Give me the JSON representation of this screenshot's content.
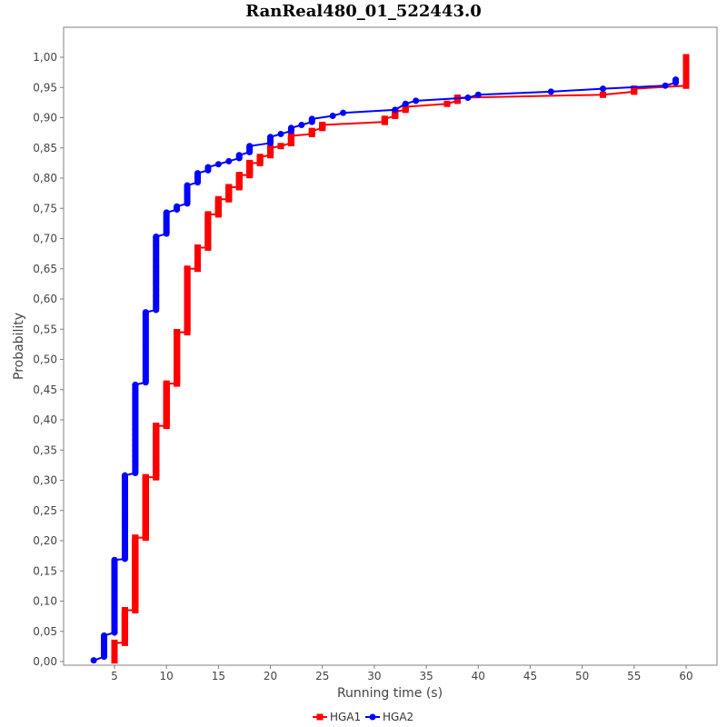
{
  "chart_data": {
    "type": "line",
    "title": "RanReal480_01_522443.0",
    "xlabel": "Running time (s)",
    "ylabel": "Probability",
    "xlim": [
      0,
      62.5
    ],
    "ylim": [
      0,
      1.0
    ],
    "x_ticks": [
      5,
      10,
      15,
      20,
      25,
      30,
      35,
      40,
      45,
      50,
      55,
      60
    ],
    "y_ticks": [
      "0,00",
      "0,05",
      "0,10",
      "0,15",
      "0,20",
      "0,25",
      "0,30",
      "0,35",
      "0,40",
      "0,45",
      "0,50",
      "0,55",
      "0,60",
      "0,65",
      "0,70",
      "0,75",
      "0,80",
      "0,85",
      "0,90",
      "0,95",
      "1,00"
    ],
    "grid": false,
    "legend_position": "bottom",
    "series": [
      {
        "name": "HGA1",
        "color": "#ff0000",
        "marker": "square",
        "points": [
          [
            5,
            0.002
          ],
          [
            5,
            0.031
          ],
          [
            6,
            0.031
          ],
          [
            6,
            0.085
          ],
          [
            7,
            0.085
          ],
          [
            7,
            0.205
          ],
          [
            8,
            0.205
          ],
          [
            8,
            0.305
          ],
          [
            9,
            0.305
          ],
          [
            9,
            0.39
          ],
          [
            10,
            0.39
          ],
          [
            10,
            0.46
          ],
          [
            11,
            0.46
          ],
          [
            11,
            0.545
          ],
          [
            12,
            0.545
          ],
          [
            12,
            0.65
          ],
          [
            13,
            0.65
          ],
          [
            13,
            0.685
          ],
          [
            14,
            0.685
          ],
          [
            14,
            0.74
          ],
          [
            15,
            0.74
          ],
          [
            15,
            0.765
          ],
          [
            16,
            0.765
          ],
          [
            16,
            0.785
          ],
          [
            17,
            0.785
          ],
          [
            17,
            0.805
          ],
          [
            18,
            0.805
          ],
          [
            18,
            0.825
          ],
          [
            19,
            0.825
          ],
          [
            19,
            0.835
          ],
          [
            20,
            0.838
          ],
          [
            20,
            0.85
          ],
          [
            21,
            0.853
          ],
          [
            22,
            0.858
          ],
          [
            22,
            0.87
          ],
          [
            24,
            0.873
          ],
          [
            24,
            0.878
          ],
          [
            25,
            0.883
          ],
          [
            25,
            0.888
          ],
          [
            31,
            0.893
          ],
          [
            31,
            0.898
          ],
          [
            32,
            0.903
          ],
          [
            32,
            0.91
          ],
          [
            33,
            0.913
          ],
          [
            33,
            0.918
          ],
          [
            37,
            0.923
          ],
          [
            38,
            0.928
          ],
          [
            38,
            0.933
          ],
          [
            52,
            0.938
          ],
          [
            55,
            0.943
          ],
          [
            55,
            0.948
          ],
          [
            60,
            0.953
          ],
          [
            60,
            1.0
          ]
        ]
      },
      {
        "name": "HGA2",
        "color": "#0000ff",
        "marker": "circle",
        "points": [
          [
            3,
            0.002
          ],
          [
            4,
            0.008
          ],
          [
            4,
            0.043
          ],
          [
            5,
            0.048
          ],
          [
            5,
            0.168
          ],
          [
            6,
            0.17
          ],
          [
            6,
            0.308
          ],
          [
            7,
            0.312
          ],
          [
            7,
            0.458
          ],
          [
            8,
            0.462
          ],
          [
            8,
            0.578
          ],
          [
            9,
            0.582
          ],
          [
            9,
            0.703
          ],
          [
            10,
            0.708
          ],
          [
            10,
            0.743
          ],
          [
            11,
            0.748
          ],
          [
            11,
            0.753
          ],
          [
            12,
            0.758
          ],
          [
            12,
            0.788
          ],
          [
            13,
            0.793
          ],
          [
            13,
            0.808
          ],
          [
            14,
            0.813
          ],
          [
            14,
            0.818
          ],
          [
            15,
            0.823
          ],
          [
            16,
            0.828
          ],
          [
            17,
            0.833
          ],
          [
            17,
            0.838
          ],
          [
            18,
            0.843
          ],
          [
            18,
            0.853
          ],
          [
            20,
            0.858
          ],
          [
            20,
            0.868
          ],
          [
            21,
            0.873
          ],
          [
            22,
            0.878
          ],
          [
            22,
            0.883
          ],
          [
            23,
            0.888
          ],
          [
            24,
            0.893
          ],
          [
            24,
            0.898
          ],
          [
            26,
            0.903
          ],
          [
            27,
            0.908
          ],
          [
            32,
            0.913
          ],
          [
            33,
            0.923
          ],
          [
            34,
            0.928
          ],
          [
            39,
            0.933
          ],
          [
            40,
            0.938
          ],
          [
            47,
            0.943
          ],
          [
            52,
            0.948
          ],
          [
            58,
            0.953
          ],
          [
            59,
            0.958
          ],
          [
            59,
            0.963
          ]
        ]
      }
    ]
  }
}
